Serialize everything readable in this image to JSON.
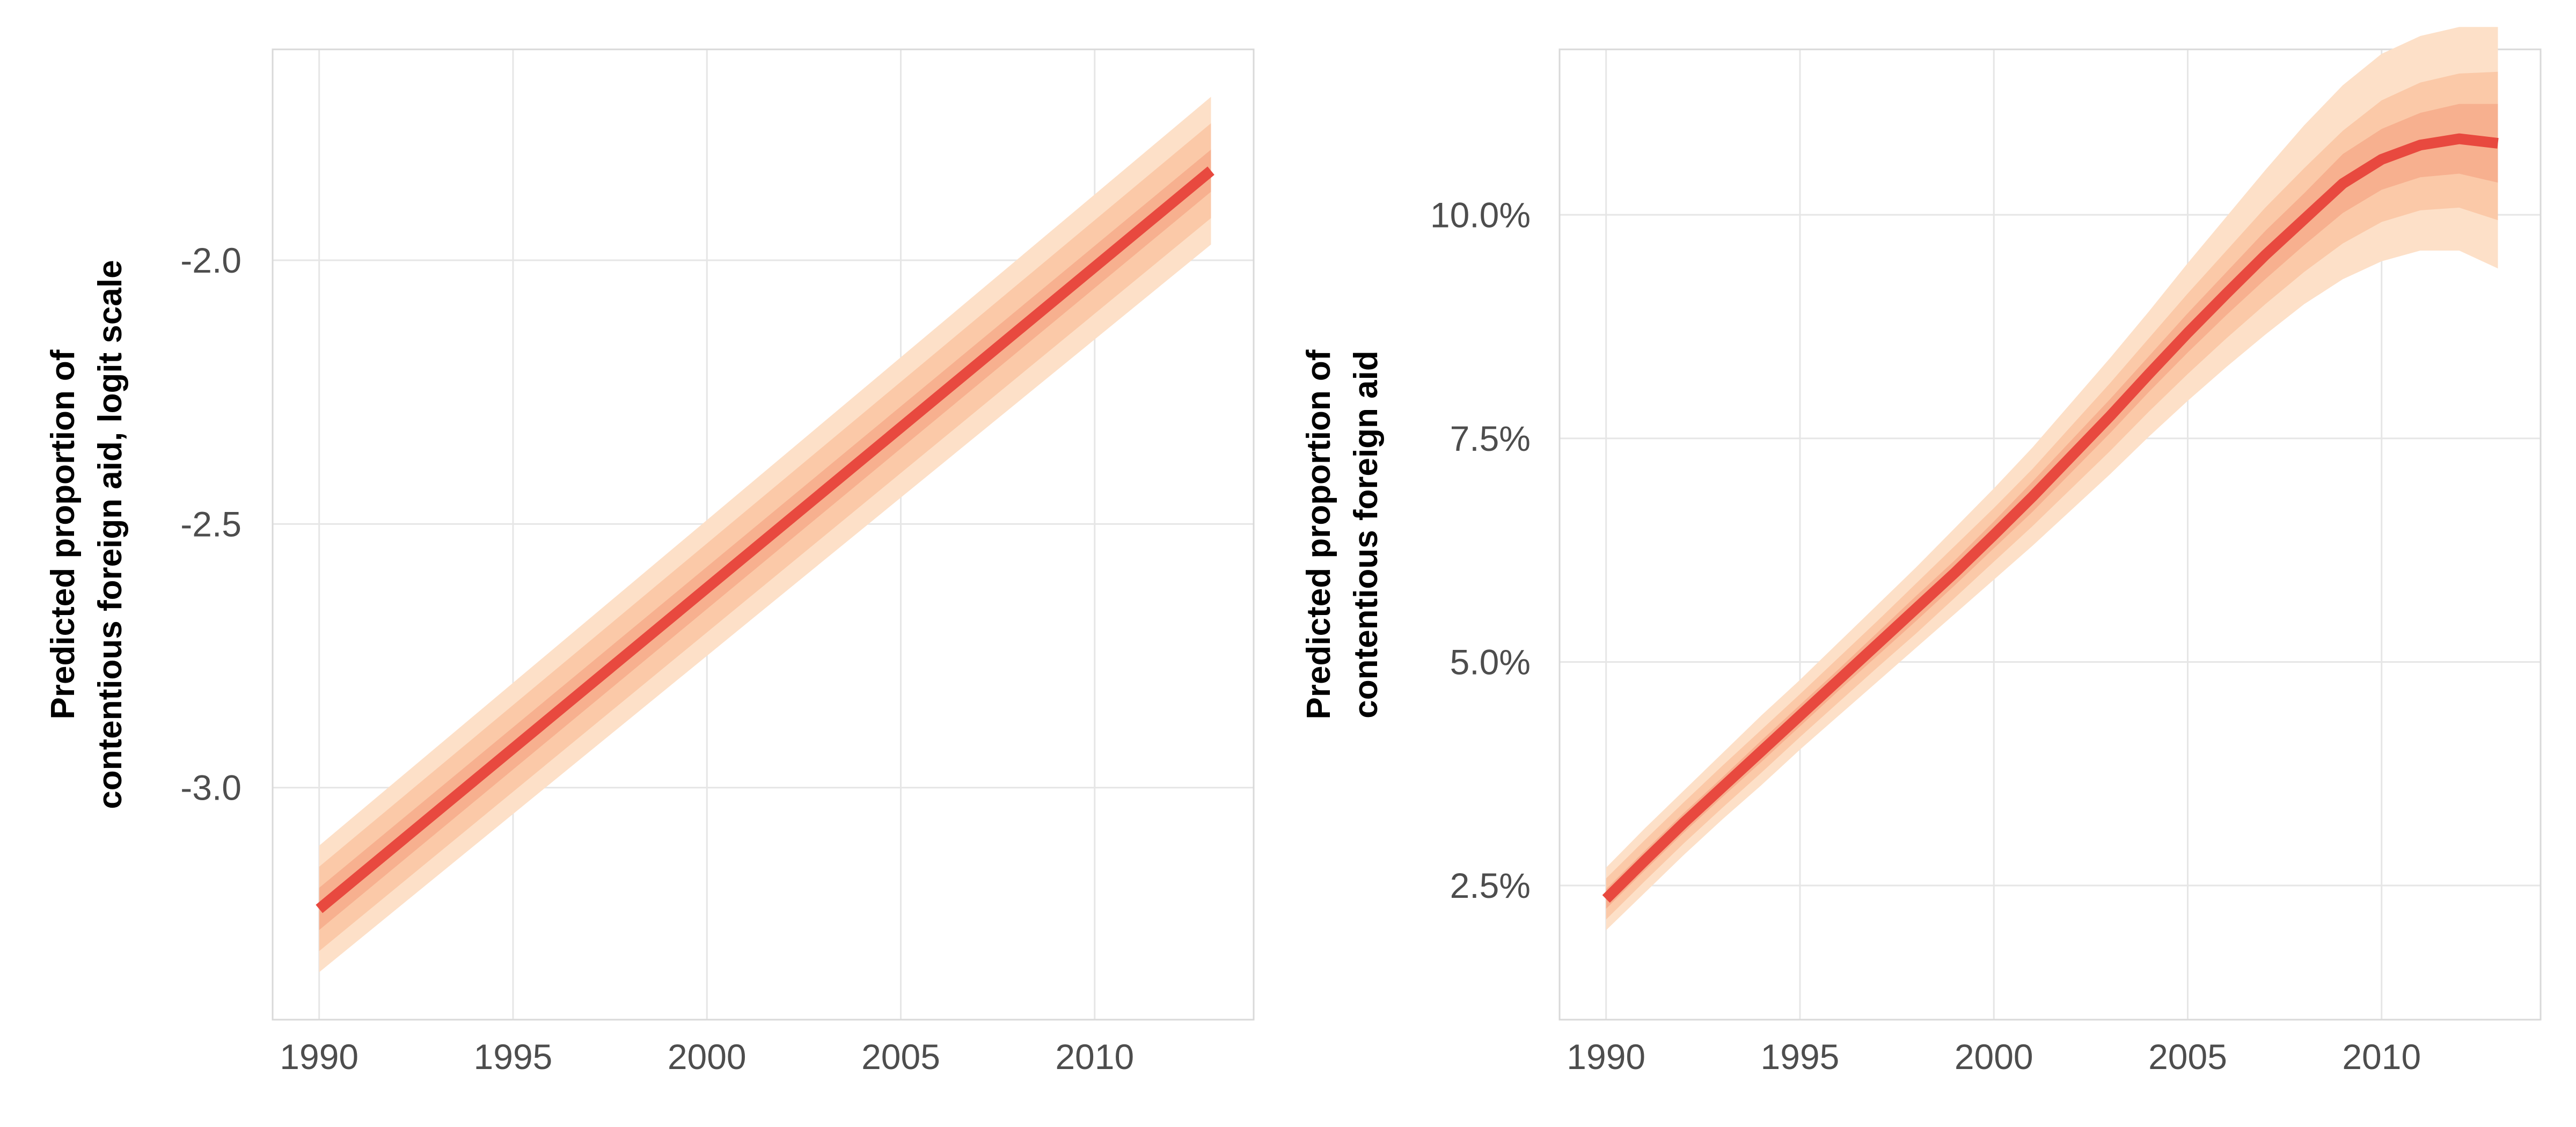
{
  "chart_data": [
    {
      "type": "line",
      "title": "",
      "xlabel": "",
      "ylabel": [
        "Predicted proportion of",
        "contentious foreign aid, logit scale"
      ],
      "xlim": [
        1988.8,
        2014.1
      ],
      "ylim": [
        -3.44,
        -1.6
      ],
      "x_ticks": [
        1990,
        1995,
        2000,
        2005,
        2010
      ],
      "x_tick_labels": [
        "1990",
        "1995",
        "2000",
        "2005",
        "2010"
      ],
      "y_ticks": [
        -3.0,
        -2.5,
        -2.0
      ],
      "y_tick_labels": [
        "-3.0",
        "-2.5",
        "-2.0"
      ],
      "grid": true,
      "x": [
        1990,
        2013
      ],
      "series": [
        {
          "values": [
            -3.23,
            -1.83
          ],
          "bands": [
            {
              "level": 0.95,
              "lower": [
                -3.35,
                -1.97
              ],
              "upper": [
                -3.11,
                -1.69
              ]
            },
            {
              "level": 0.8,
              "lower": [
                -3.31,
                -1.92
              ],
              "upper": [
                -3.15,
                -1.74
              ]
            },
            {
              "level": 0.5,
              "lower": [
                -3.27,
                -1.87
              ],
              "upper": [
                -3.19,
                -1.79
              ]
            }
          ]
        }
      ]
    },
    {
      "type": "line",
      "title": "",
      "xlabel": "",
      "ylabel": [
        "Predicted proportion of",
        "contentious foreign aid"
      ],
      "xlim": [
        1988.8,
        2014.1
      ],
      "ylim": [
        1.0,
        11.85
      ],
      "x_ticks": [
        1990,
        1995,
        2000,
        2005,
        2010
      ],
      "x_tick_labels": [
        "1990",
        "1995",
        "2000",
        "2005",
        "2010"
      ],
      "y_ticks": [
        2.5,
        5.0,
        7.5,
        10.0
      ],
      "y_tick_labels": [
        "2.5%",
        "5.0%",
        "7.5%",
        "10.0%"
      ],
      "grid": true,
      "x": [
        1990,
        1991,
        1992,
        1993,
        1994,
        1995,
        1996,
        1997,
        1998,
        1999,
        2000,
        2001,
        2002,
        2003,
        2004,
        2005,
        2006,
        2007,
        2008,
        2009,
        2010,
        2011,
        2012,
        2013
      ],
      "series": [
        {
          "values": [
            2.35,
            2.78,
            3.2,
            3.6,
            4.0,
            4.4,
            4.8,
            5.2,
            5.6,
            6.0,
            6.42,
            6.85,
            7.3,
            7.75,
            8.22,
            8.68,
            9.12,
            9.55,
            9.95,
            10.35,
            10.62,
            10.78,
            10.85,
            10.8
          ],
          "bands": [
            {
              "level": 0.95,
              "lower": [
                2.0,
                2.42,
                2.84,
                3.24,
                3.62,
                4.02,
                4.4,
                4.78,
                5.16,
                5.54,
                5.92,
                6.3,
                6.7,
                7.1,
                7.52,
                7.92,
                8.3,
                8.66,
                9.0,
                9.28,
                9.48,
                9.6,
                9.6,
                9.4
              ],
              "upper": [
                2.7,
                3.14,
                3.56,
                3.98,
                4.4,
                4.8,
                5.22,
                5.64,
                6.06,
                6.5,
                6.94,
                7.4,
                7.9,
                8.4,
                8.92,
                9.46,
                9.98,
                10.5,
                11.0,
                11.45,
                11.8,
                12.0,
                12.1,
                12.1
              ]
            },
            {
              "level": 0.8,
              "lower": [
                2.12,
                2.55,
                2.97,
                3.37,
                3.76,
                4.16,
                4.55,
                4.94,
                5.32,
                5.72,
                6.12,
                6.52,
                6.94,
                7.36,
                7.8,
                8.22,
                8.62,
                9.0,
                9.36,
                9.68,
                9.92,
                10.05,
                10.08,
                9.94
              ],
              "upper": [
                2.58,
                3.01,
                3.43,
                3.84,
                4.24,
                4.64,
                5.05,
                5.46,
                5.88,
                6.3,
                6.72,
                7.16,
                7.64,
                8.12,
                8.62,
                9.12,
                9.6,
                10.08,
                10.52,
                10.94,
                11.28,
                11.48,
                11.58,
                11.6
              ]
            },
            {
              "level": 0.5,
              "lower": [
                2.24,
                2.67,
                3.09,
                3.49,
                3.88,
                4.28,
                4.68,
                5.07,
                5.46,
                5.86,
                6.27,
                6.68,
                7.12,
                7.56,
                8.02,
                8.46,
                8.88,
                9.28,
                9.66,
                10.02,
                10.28,
                10.42,
                10.46,
                10.36
              ],
              "upper": [
                2.46,
                2.89,
                3.31,
                3.71,
                4.12,
                4.52,
                4.92,
                5.33,
                5.74,
                6.14,
                6.57,
                7.02,
                7.48,
                7.94,
                8.42,
                8.9,
                9.36,
                9.82,
                10.24,
                10.68,
                10.96,
                11.14,
                11.24,
                11.24
              ]
            }
          ]
        }
      ]
    }
  ],
  "colors": {
    "line": "#e8493f",
    "band_95": "#fde0c8",
    "band_80": "#fbc9a8",
    "band_50": "#f7b08f",
    "grid": "#e6e6e6",
    "frame": "#d9d9d9"
  }
}
